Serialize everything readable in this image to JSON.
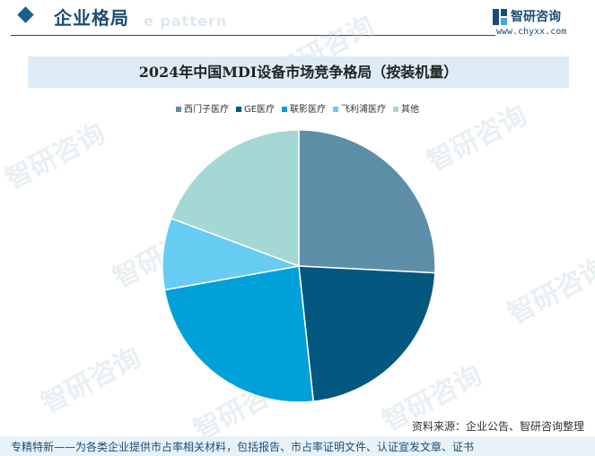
{
  "header": {
    "title": "企业格局",
    "ghost_text": "e pattern"
  },
  "brand": {
    "name": "智研咨询",
    "url": "www.chyxx.com"
  },
  "watermark_text": "智研咨询",
  "chart_data": {
    "type": "pie",
    "title": "2024年中国MDI设备市场竞争格局（按装机量）",
    "legend_position": "top",
    "series": [
      {
        "name": "西门子医疗",
        "value": 25.8,
        "color": "#5e8fa8"
      },
      {
        "name": "GE医疗",
        "value": 22.5,
        "color": "#04587f"
      },
      {
        "name": "联影医疗",
        "value": 23.9,
        "color": "#00a0d8"
      },
      {
        "name": "飞利浦医疗",
        "value": 8.5,
        "color": "#66ccf2"
      },
      {
        "name": "其他",
        "value": 19.3,
        "color": "#a3d8d5"
      }
    ]
  },
  "source": "资料来源：企业公告、智研咨询整理",
  "footer": "专精特新——为各类企业提供市占率相关材料，包括报告、市占率证明文件、认证宣发文章、证书"
}
